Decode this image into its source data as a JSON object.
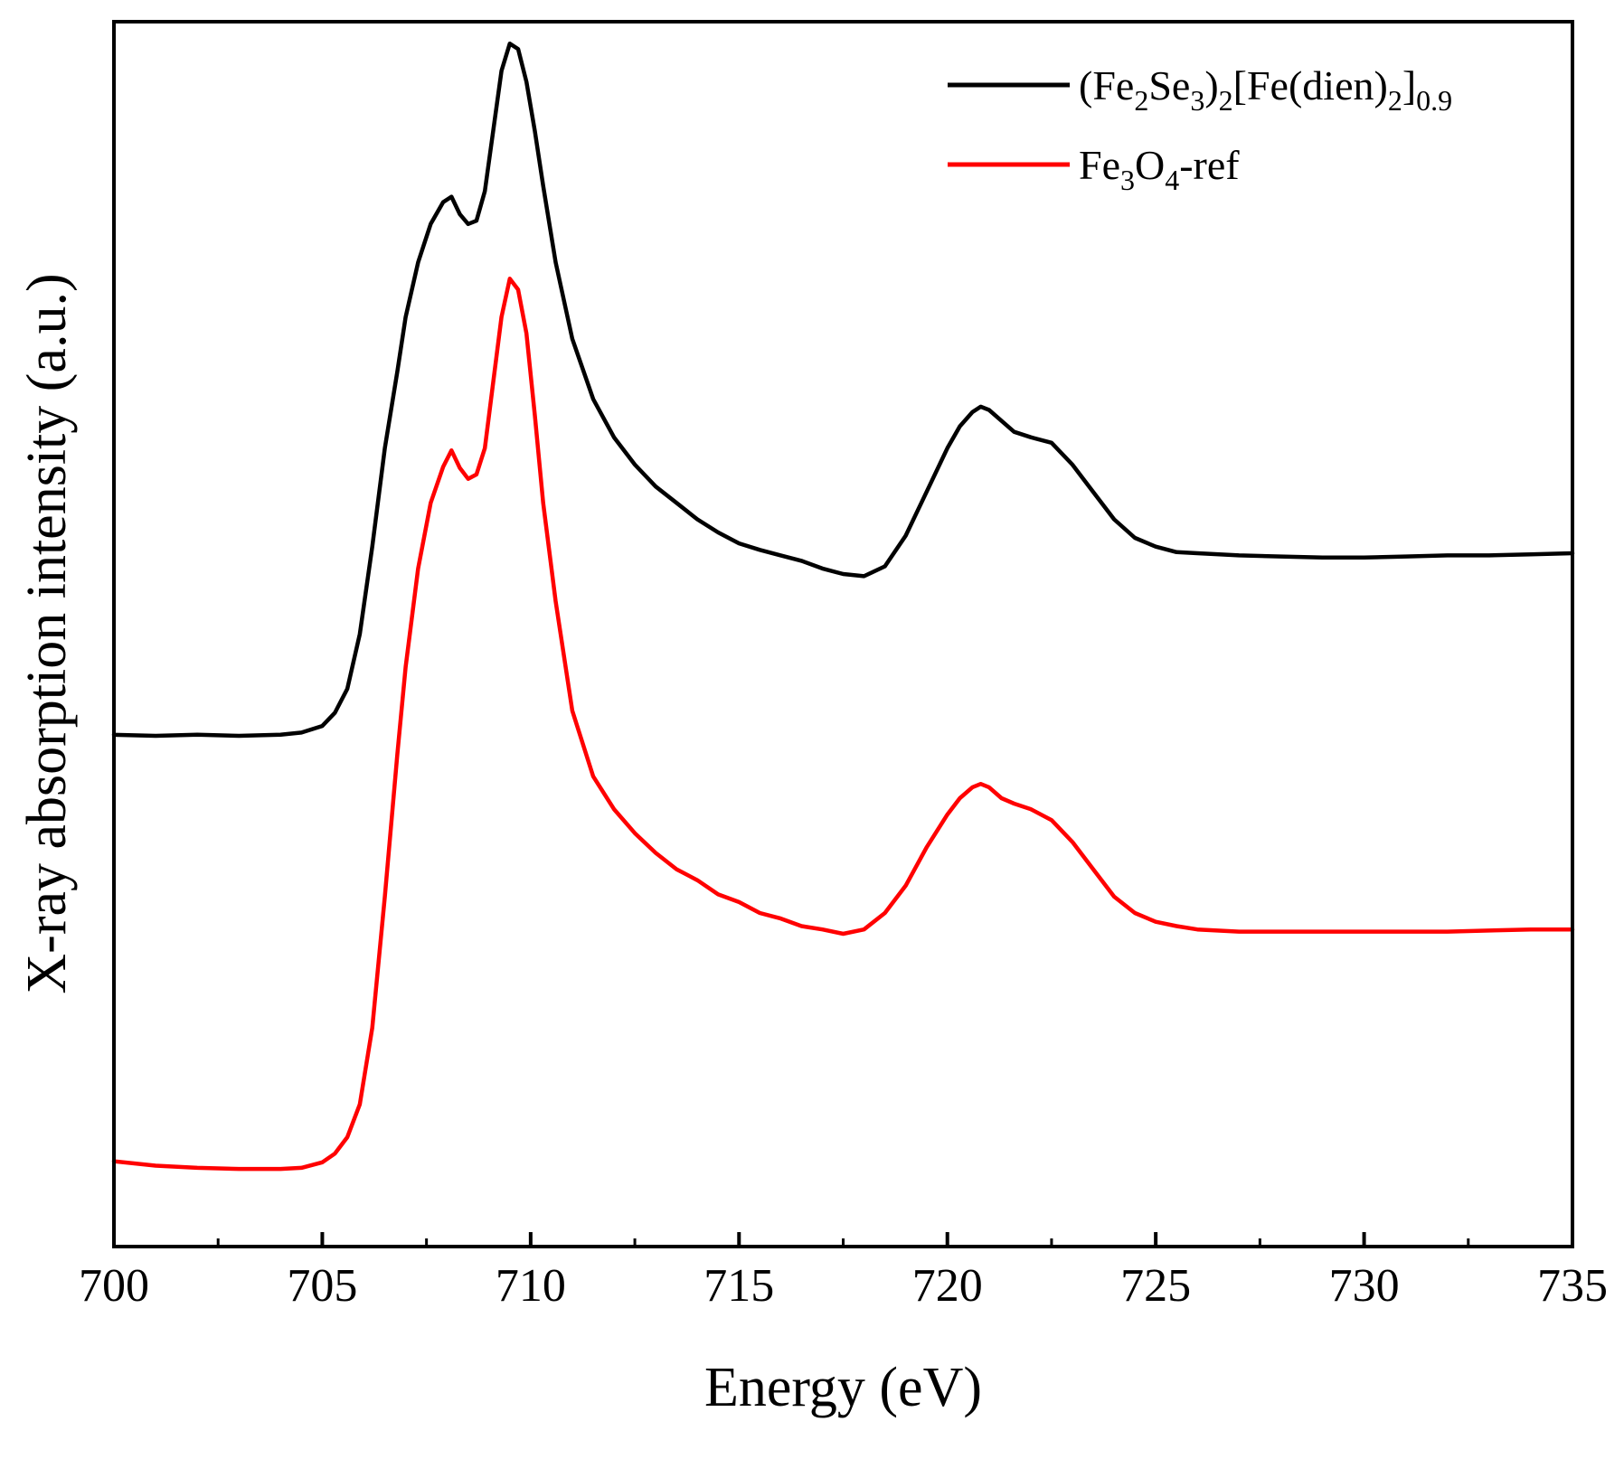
{
  "chart_data": {
    "type": "line",
    "title": "",
    "xlabel": "Energy (eV)",
    "ylabel": "X-ray absorption intensity (a.u.)",
    "xlim": [
      700,
      735
    ],
    "ylim": [
      0,
      1.12
    ],
    "x_ticks": [
      700,
      705,
      710,
      715,
      720,
      725,
      730,
      735
    ],
    "x_tick_labels": [
      "700",
      "705",
      "710",
      "715",
      "720",
      "725",
      "730",
      "735"
    ],
    "x_minor_ticks": [
      702.5,
      707.5,
      712.5,
      717.5,
      722.5,
      727.5,
      732.5
    ],
    "y_ticks_shown": false,
    "grid": false,
    "legend_placement": "top-right",
    "series": [
      {
        "name": "(Fe2Se3)2[Fe(dien)2]0.9",
        "legend": {
          "parts": [
            {
              "text": "(Fe",
              "sub": false
            },
            {
              "text": "2",
              "sub": true
            },
            {
              "text": "Se",
              "sub": false
            },
            {
              "text": "3",
              "sub": true
            },
            {
              "text": ")",
              "sub": false
            },
            {
              "text": "2",
              "sub": true
            },
            {
              "text": "[Fe(dien)",
              "sub": false
            },
            {
              "text": "2",
              "sub": true
            },
            {
              "text": "]",
              "sub": false
            },
            {
              "text": "0.9",
              "sub": true
            }
          ]
        },
        "color": "#000000",
        "x": [
          700.0,
          701.0,
          702.0,
          703.0,
          704.0,
          704.5,
          705.0,
          705.3,
          705.6,
          705.9,
          706.2,
          706.5,
          706.8,
          707.0,
          707.3,
          707.6,
          707.9,
          708.1,
          708.3,
          708.5,
          708.7,
          708.9,
          709.1,
          709.3,
          709.5,
          709.7,
          709.9,
          710.1,
          710.3,
          710.6,
          711.0,
          711.5,
          712.0,
          712.5,
          713.0,
          713.5,
          714.0,
          714.5,
          715.0,
          715.5,
          716.0,
          716.5,
          717.0,
          717.5,
          718.0,
          718.5,
          719.0,
          719.5,
          720.0,
          720.3,
          720.6,
          720.8,
          721.0,
          721.3,
          721.6,
          722.0,
          722.5,
          723.0,
          723.5,
          724.0,
          724.5,
          725.0,
          725.5,
          726.0,
          727.0,
          728.0,
          729.0,
          730.0,
          731.0,
          732.0,
          733.0,
          734.0,
          735.0
        ],
        "y": [
          0.468,
          0.467,
          0.468,
          0.467,
          0.468,
          0.47,
          0.476,
          0.488,
          0.51,
          0.56,
          0.64,
          0.73,
          0.8,
          0.85,
          0.9,
          0.935,
          0.955,
          0.96,
          0.944,
          0.935,
          0.938,
          0.965,
          1.02,
          1.075,
          1.1,
          1.095,
          1.065,
          1.02,
          0.97,
          0.9,
          0.83,
          0.775,
          0.74,
          0.715,
          0.695,
          0.68,
          0.665,
          0.653,
          0.643,
          0.637,
          0.632,
          0.627,
          0.62,
          0.615,
          0.613,
          0.622,
          0.65,
          0.69,
          0.73,
          0.75,
          0.763,
          0.768,
          0.765,
          0.755,
          0.745,
          0.74,
          0.735,
          0.715,
          0.69,
          0.665,
          0.648,
          0.64,
          0.635,
          0.634,
          0.632,
          0.631,
          0.63,
          0.63,
          0.631,
          0.632,
          0.632,
          0.633,
          0.634
        ]
      },
      {
        "name": "Fe3O4-ref",
        "legend": {
          "parts": [
            {
              "text": "Fe",
              "sub": false
            },
            {
              "text": "3",
              "sub": true
            },
            {
              "text": "O",
              "sub": false
            },
            {
              "text": "4",
              "sub": true
            },
            {
              "text": "-ref",
              "sub": false
            }
          ]
        },
        "color": "#ff0000",
        "x": [
          700.0,
          701.0,
          702.0,
          703.0,
          704.0,
          704.5,
          705.0,
          705.3,
          705.6,
          705.9,
          706.2,
          706.5,
          706.8,
          707.0,
          707.3,
          707.6,
          707.9,
          708.1,
          708.3,
          708.5,
          708.7,
          708.9,
          709.1,
          709.3,
          709.5,
          709.7,
          709.9,
          710.1,
          710.3,
          710.6,
          711.0,
          711.5,
          712.0,
          712.5,
          713.0,
          713.5,
          714.0,
          714.5,
          715.0,
          715.5,
          716.0,
          716.5,
          717.0,
          717.5,
          718.0,
          718.5,
          719.0,
          719.5,
          720.0,
          720.3,
          720.6,
          720.8,
          721.0,
          721.3,
          721.6,
          722.0,
          722.5,
          723.0,
          723.5,
          724.0,
          724.5,
          725.0,
          725.5,
          726.0,
          727.0,
          728.0,
          729.0,
          730.0,
          731.0,
          732.0,
          733.0,
          734.0,
          735.0
        ],
        "y": [
          0.078,
          0.074,
          0.072,
          0.071,
          0.071,
          0.072,
          0.077,
          0.085,
          0.1,
          0.13,
          0.2,
          0.32,
          0.45,
          0.53,
          0.62,
          0.68,
          0.713,
          0.728,
          0.712,
          0.702,
          0.706,
          0.73,
          0.79,
          0.85,
          0.885,
          0.875,
          0.835,
          0.76,
          0.68,
          0.59,
          0.49,
          0.43,
          0.4,
          0.378,
          0.36,
          0.345,
          0.335,
          0.322,
          0.315,
          0.305,
          0.3,
          0.293,
          0.29,
          0.286,
          0.29,
          0.305,
          0.33,
          0.365,
          0.395,
          0.41,
          0.42,
          0.423,
          0.42,
          0.41,
          0.405,
          0.4,
          0.39,
          0.37,
          0.345,
          0.32,
          0.305,
          0.297,
          0.293,
          0.29,
          0.288,
          0.288,
          0.288,
          0.288,
          0.288,
          0.288,
          0.289,
          0.29,
          0.29
        ]
      }
    ]
  }
}
